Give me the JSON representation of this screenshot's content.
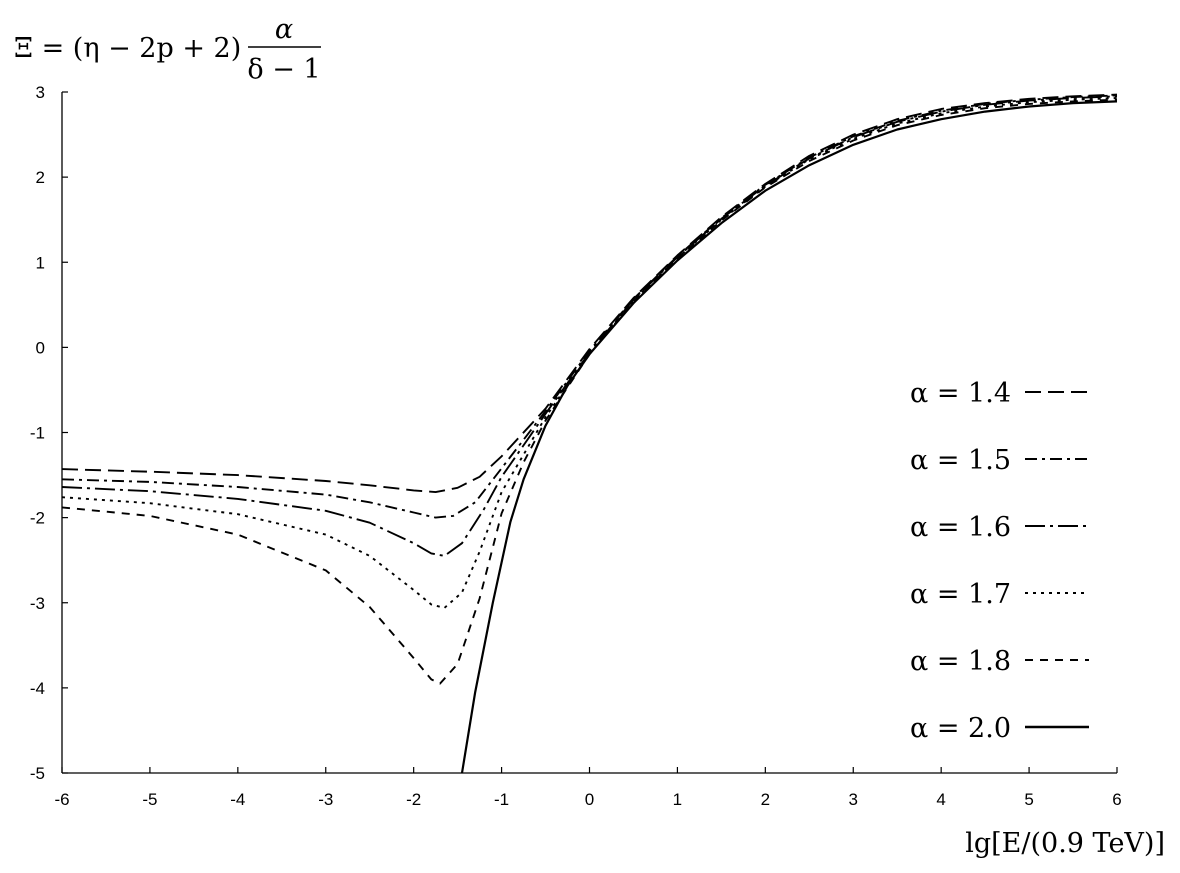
{
  "chart_data": {
    "type": "line",
    "ylabel": {
      "lhs": "Ξ = (η − 2p + 2)",
      "frac_num": "α",
      "frac_den": "δ − 1"
    },
    "xlabel": "lg[E/(0.9 TeV)]",
    "xlim": [
      -6,
      6
    ],
    "ylim": [
      -5,
      3
    ],
    "x_ticks": [
      "-6",
      "-5",
      "-4",
      "-3",
      "-2",
      "-1",
      "0",
      "1",
      "2",
      "3",
      "4",
      "5",
      "6"
    ],
    "y_ticks": [
      "-5",
      "-4",
      "-3",
      "-2",
      "-1",
      "0",
      "1",
      "2",
      "3"
    ],
    "grid": false,
    "legend_position": "right",
    "series": [
      {
        "name": "α = 1.4",
        "dash": "long-dash",
        "points": [
          [
            -6,
            -1.43
          ],
          [
            -5,
            -1.46
          ],
          [
            -4,
            -1.5
          ],
          [
            -3,
            -1.57
          ],
          [
            -2.5,
            -1.62
          ],
          [
            -2,
            -1.68
          ],
          [
            -1.75,
            -1.7
          ],
          [
            -1.5,
            -1.65
          ],
          [
            -1.25,
            -1.52
          ],
          [
            -1,
            -1.28
          ],
          [
            -0.5,
            -0.72
          ],
          [
            0,
            -0.02
          ],
          [
            0.5,
            0.58
          ],
          [
            1,
            1.08
          ],
          [
            1.5,
            1.53
          ],
          [
            2,
            1.92
          ],
          [
            2.5,
            2.25
          ],
          [
            3,
            2.5
          ],
          [
            3.5,
            2.68
          ],
          [
            4,
            2.8
          ],
          [
            4.5,
            2.87
          ],
          [
            5,
            2.92
          ],
          [
            5.5,
            2.95
          ],
          [
            6,
            2.97
          ]
        ]
      },
      {
        "name": "α = 1.5",
        "dash": "dash-dot",
        "points": [
          [
            -6,
            -1.55
          ],
          [
            -5,
            -1.58
          ],
          [
            -4,
            -1.64
          ],
          [
            -3,
            -1.73
          ],
          [
            -2.5,
            -1.82
          ],
          [
            -2,
            -1.94
          ],
          [
            -1.75,
            -2.0
          ],
          [
            -1.55,
            -1.98
          ],
          [
            -1.3,
            -1.82
          ],
          [
            -1,
            -1.42
          ],
          [
            -0.5,
            -0.75
          ],
          [
            0,
            -0.04
          ],
          [
            0.5,
            0.57
          ],
          [
            1,
            1.07
          ],
          [
            1.5,
            1.52
          ],
          [
            2,
            1.91
          ],
          [
            2.5,
            2.23
          ],
          [
            3,
            2.48
          ],
          [
            3.5,
            2.66
          ],
          [
            4,
            2.78
          ],
          [
            4.5,
            2.86
          ],
          [
            5,
            2.91
          ],
          [
            5.5,
            2.94
          ],
          [
            6,
            2.96
          ]
        ]
      },
      {
        "name": "α = 1.6",
        "dash": "long-dash-dot",
        "points": [
          [
            -6,
            -1.64
          ],
          [
            -5,
            -1.69
          ],
          [
            -4,
            -1.78
          ],
          [
            -3,
            -1.92
          ],
          [
            -2.5,
            -2.06
          ],
          [
            -2,
            -2.3
          ],
          [
            -1.8,
            -2.42
          ],
          [
            -1.65,
            -2.45
          ],
          [
            -1.45,
            -2.3
          ],
          [
            -1.2,
            -1.9
          ],
          [
            -1,
            -1.52
          ],
          [
            -0.5,
            -0.78
          ],
          [
            0,
            -0.06
          ],
          [
            0.5,
            0.56
          ],
          [
            1,
            1.06
          ],
          [
            1.5,
            1.51
          ],
          [
            2,
            1.9
          ],
          [
            2.5,
            2.22
          ],
          [
            3,
            2.47
          ],
          [
            3.5,
            2.65
          ],
          [
            4,
            2.77
          ],
          [
            4.5,
            2.85
          ],
          [
            5,
            2.9
          ],
          [
            5.5,
            2.93
          ],
          [
            6,
            2.95
          ]
        ]
      },
      {
        "name": "α = 1.7",
        "dash": "dotted",
        "points": [
          [
            -6,
            -1.76
          ],
          [
            -5,
            -1.83
          ],
          [
            -4,
            -1.96
          ],
          [
            -3,
            -2.2
          ],
          [
            -2.5,
            -2.45
          ],
          [
            -2,
            -2.85
          ],
          [
            -1.8,
            -3.02
          ],
          [
            -1.65,
            -3.06
          ],
          [
            -1.45,
            -2.88
          ],
          [
            -1.25,
            -2.4
          ],
          [
            -1,
            -1.7
          ],
          [
            -0.5,
            -0.82
          ],
          [
            0,
            -0.07
          ],
          [
            0.5,
            0.55
          ],
          [
            1,
            1.05
          ],
          [
            1.5,
            1.5
          ],
          [
            2,
            1.89
          ],
          [
            2.5,
            2.21
          ],
          [
            3,
            2.45
          ],
          [
            3.5,
            2.63
          ],
          [
            4,
            2.75
          ],
          [
            4.5,
            2.83
          ],
          [
            5,
            2.88
          ],
          [
            5.5,
            2.91
          ],
          [
            6,
            2.93
          ]
        ]
      },
      {
        "name": "α = 1.8",
        "dash": "short-dash",
        "points": [
          [
            -6,
            -1.88
          ],
          [
            -5,
            -1.98
          ],
          [
            -4,
            -2.2
          ],
          [
            -3,
            -2.62
          ],
          [
            -2.5,
            -3.05
          ],
          [
            -2,
            -3.65
          ],
          [
            -1.8,
            -3.9
          ],
          [
            -1.7,
            -3.95
          ],
          [
            -1.5,
            -3.72
          ],
          [
            -1.25,
            -2.95
          ],
          [
            -1,
            -1.95
          ],
          [
            -0.75,
            -1.35
          ],
          [
            -0.5,
            -0.86
          ],
          [
            0,
            -0.08
          ],
          [
            0.5,
            0.54
          ],
          [
            1,
            1.04
          ],
          [
            1.5,
            1.49
          ],
          [
            2,
            1.88
          ],
          [
            2.5,
            2.19
          ],
          [
            3,
            2.43
          ],
          [
            3.5,
            2.61
          ],
          [
            4,
            2.73
          ],
          [
            4.5,
            2.81
          ],
          [
            5,
            2.86
          ],
          [
            5.5,
            2.89
          ],
          [
            6,
            2.91
          ]
        ]
      },
      {
        "name": "α = 2.0",
        "dash": "solid",
        "points": [
          [
            -1.45,
            -5.0
          ],
          [
            -1.3,
            -4.05
          ],
          [
            -1.1,
            -3.0
          ],
          [
            -0.9,
            -2.05
          ],
          [
            -0.75,
            -1.55
          ],
          [
            -0.5,
            -0.92
          ],
          [
            -0.25,
            -0.45
          ],
          [
            0,
            -0.08
          ],
          [
            0.5,
            0.52
          ],
          [
            1,
            1.02
          ],
          [
            1.5,
            1.46
          ],
          [
            2,
            1.84
          ],
          [
            2.5,
            2.14
          ],
          [
            3,
            2.38
          ],
          [
            3.5,
            2.56
          ],
          [
            4,
            2.68
          ],
          [
            4.5,
            2.77
          ],
          [
            5,
            2.83
          ],
          [
            5.5,
            2.87
          ],
          [
            6,
            2.89
          ]
        ]
      }
    ]
  }
}
